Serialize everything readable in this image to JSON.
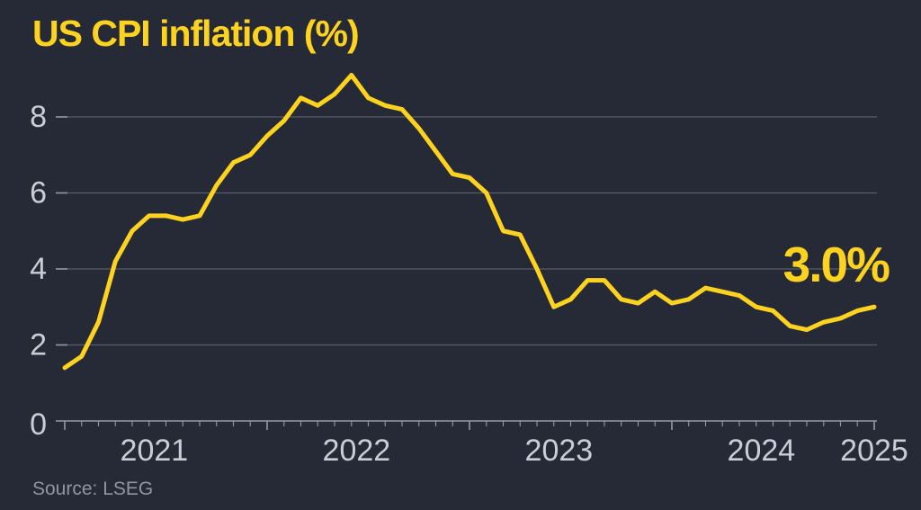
{
  "title": "US CPI inflation (%)",
  "source": "Source: LSEG",
  "annotation": {
    "label": "3.0%"
  },
  "colors": {
    "background": "#262a36",
    "accent_yellow": "#fdd320",
    "gridline": "#565c69",
    "axis_line": "#949aa6",
    "tick_label": "#c9cdd6",
    "source_text": "#8f95a1"
  },
  "chart_data": {
    "type": "line",
    "title": "US CPI inflation (%)",
    "xlabel": "",
    "ylabel": "",
    "ylim": [
      0,
      9.3
    ],
    "y_ticks": [
      0,
      2,
      4,
      6,
      8
    ],
    "grid": "horizontal",
    "legend": "none",
    "x_tick_years": [
      "2021",
      "2022",
      "2023",
      "2024",
      "2025"
    ],
    "latest_value_label": "3.0%",
    "series": [
      {
        "name": "US CPI inflation (%)",
        "x": [
          "2021-01",
          "2021-02",
          "2021-03",
          "2021-04",
          "2021-05",
          "2021-06",
          "2021-07",
          "2021-08",
          "2021-09",
          "2021-10",
          "2021-11",
          "2021-12",
          "2022-01",
          "2022-02",
          "2022-03",
          "2022-04",
          "2022-05",
          "2022-06",
          "2022-07",
          "2022-08",
          "2022-09",
          "2022-10",
          "2022-11",
          "2022-12",
          "2023-01",
          "2023-02",
          "2023-03",
          "2023-04",
          "2023-05",
          "2023-06",
          "2023-07",
          "2023-08",
          "2023-09",
          "2023-10",
          "2023-11",
          "2023-12",
          "2024-01",
          "2024-02",
          "2024-03",
          "2024-04",
          "2024-05",
          "2024-06",
          "2024-07",
          "2024-08",
          "2024-09",
          "2024-10",
          "2024-11",
          "2024-12",
          "2025-01"
        ],
        "values": [
          1.4,
          1.7,
          2.6,
          4.2,
          5.0,
          5.4,
          5.4,
          5.3,
          5.4,
          6.2,
          6.8,
          7.0,
          7.5,
          7.9,
          8.5,
          8.3,
          8.6,
          9.1,
          8.5,
          8.3,
          8.2,
          7.7,
          7.1,
          6.5,
          6.4,
          6.0,
          5.0,
          4.9,
          4.0,
          3.0,
          3.2,
          3.7,
          3.7,
          3.2,
          3.1,
          3.4,
          3.1,
          3.2,
          3.5,
          3.4,
          3.3,
          3.0,
          2.9,
          2.5,
          2.4,
          2.6,
          2.7,
          2.9,
          3.0
        ]
      }
    ]
  }
}
